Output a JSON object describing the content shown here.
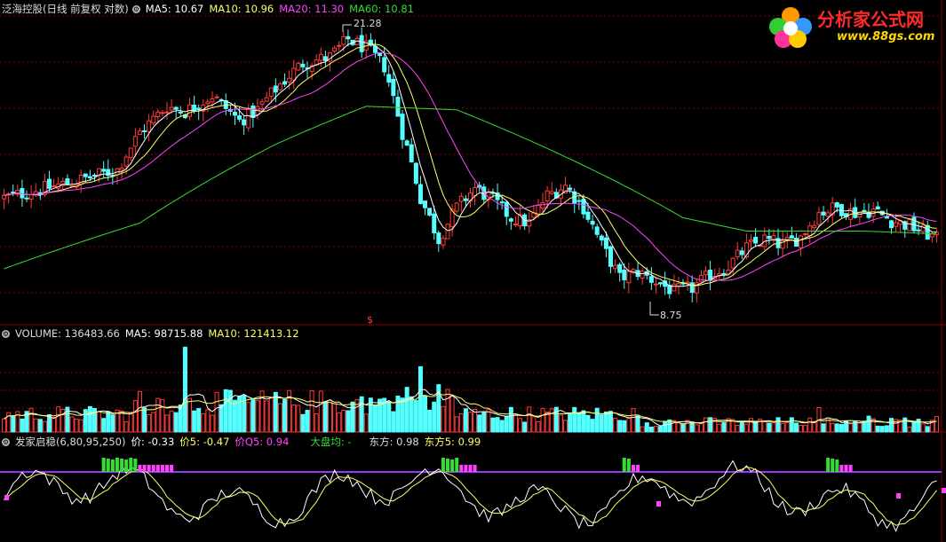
{
  "main_header": {
    "stock": "泛海控股(日线 前复权 对数)",
    "ma5": "MA5: 10.67",
    "ma10": "MA10: 10.96",
    "ma20": "MA20: 11.30",
    "ma60": "MA60: 10.81"
  },
  "volume_header": {
    "volume": "VOLUME: 136483.66",
    "ma5": "MA5: 98715.88",
    "ma10": "MA10: 121413.12"
  },
  "indicator_header": {
    "name": "发家启稳(6,80,95,250)",
    "jia": "价: -0.33",
    "jia5": "价5: -0.47",
    "jiaq5": "价Q5: 0.94",
    "dapan": "大盘均: -",
    "dongfang": "东方: 0.98",
    "dongfang5": "东方5: 0.99"
  },
  "logo": {
    "title": "分析家公式网",
    "url": "www.88gs.com"
  },
  "annotations": {
    "high": "21.28",
    "low": "8.75",
    "marker": "$"
  },
  "colors": {
    "up": "#ff3b3b",
    "down": "#54ffff",
    "ma5": "#ffffff",
    "ma10": "#ffff66",
    "ma20": "#ff44ff",
    "ma60": "#33dd33",
    "grid": "#8b0000",
    "purple_line": "#9933ff"
  },
  "chart_data": {
    "type": "candlestick",
    "price_anchors": [
      [
        0,
        12.2
      ],
      [
        14,
        12.8
      ],
      [
        25,
        13.4
      ],
      [
        30,
        15.2
      ],
      [
        36,
        16.6
      ],
      [
        40,
        16.3
      ],
      [
        46,
        17.2
      ],
      [
        52,
        15.8
      ],
      [
        56,
        16.4
      ],
      [
        60,
        17.6
      ],
      [
        66,
        19.2
      ],
      [
        72,
        19.6
      ],
      [
        76,
        20.8
      ],
      [
        80,
        20.2
      ],
      [
        84,
        19.0
      ],
      [
        88,
        15.2
      ],
      [
        92,
        12.2
      ],
      [
        96,
        10.6
      ],
      [
        100,
        11.8
      ],
      [
        104,
        12.6
      ],
      [
        108,
        12.1
      ],
      [
        112,
        11.4
      ],
      [
        116,
        11.2
      ],
      [
        120,
        12.3
      ],
      [
        124,
        12.7
      ],
      [
        128,
        11.8
      ],
      [
        132,
        10.4
      ],
      [
        136,
        9.3
      ],
      [
        140,
        9.5
      ],
      [
        144,
        9.2
      ],
      [
        148,
        8.9
      ],
      [
        152,
        9.0
      ],
      [
        156,
        9.4
      ],
      [
        160,
        9.7
      ],
      [
        164,
        10.3
      ],
      [
        168,
        10.6
      ],
      [
        172,
        10.4
      ],
      [
        176,
        10.7
      ],
      [
        180,
        11.6
      ],
      [
        184,
        11.8
      ],
      [
        188,
        11.6
      ],
      [
        192,
        11.7
      ],
      [
        196,
        11.3
      ],
      [
        200,
        11.1
      ],
      [
        204,
        10.8
      ],
      [
        206,
        10.6
      ]
    ],
    "ma60_anchors": [
      [
        0,
        9.6
      ],
      [
        30,
        11.2
      ],
      [
        60,
        14.6
      ],
      [
        80,
        16.6
      ],
      [
        100,
        16.4
      ],
      [
        130,
        13.4
      ],
      [
        150,
        11.4
      ],
      [
        164,
        10.9
      ],
      [
        190,
        10.9
      ],
      [
        206,
        10.8
      ]
    ],
    "volume_ylim": [
      0,
      280000
    ],
    "indicator_ylim": [
      -1.2,
      1.2
    ]
  }
}
